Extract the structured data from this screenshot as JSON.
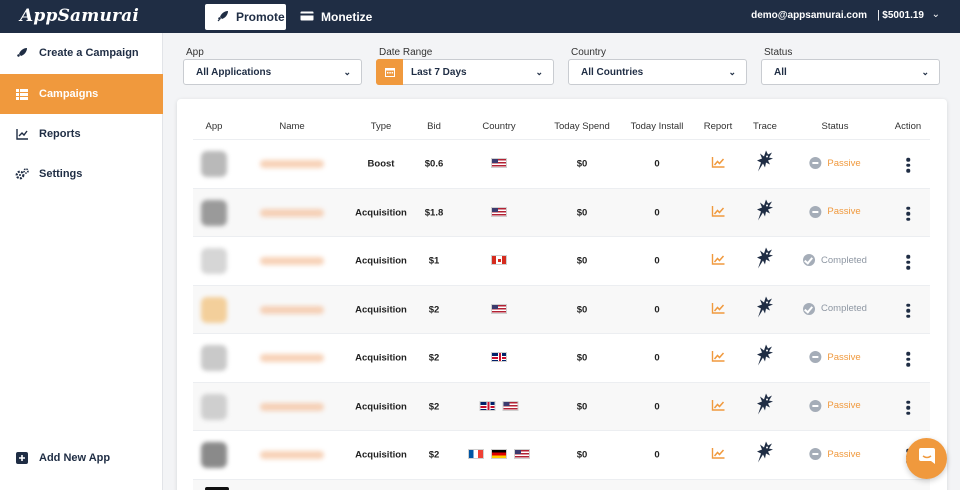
{
  "header": {
    "logo": "AppSamurai",
    "promote_label": "Promote",
    "monetize_label": "Monetize",
    "user_email": "demo@appsamurai.com",
    "separator": "|",
    "balance": "$5001.19"
  },
  "sidebar": {
    "items": [
      {
        "label": "Create a Campaign",
        "icon": "rocket-icon"
      },
      {
        "label": "Campaigns",
        "icon": "list-icon"
      },
      {
        "label": "Reports",
        "icon": "chart-line-icon"
      },
      {
        "label": "Settings",
        "icon": "gears-icon"
      }
    ],
    "add_app_label": "Add New App"
  },
  "filters": {
    "app_label": "App",
    "app_value": "All Applications",
    "date_label": "Date Range",
    "date_value": "Last 7 Days",
    "country_label": "Country",
    "country_value": "All Countries",
    "status_label": "Status",
    "status_value": "All"
  },
  "table": {
    "headers": [
      "App",
      "Name",
      "Type",
      "Bid",
      "Country",
      "Today Spend",
      "Today Install",
      "Report",
      "Trace",
      "Status",
      "Action"
    ],
    "rows": [
      {
        "type": "Boost",
        "bid": "$0.6",
        "countries": [
          "us"
        ],
        "spend": "$0",
        "installs": "0",
        "status": "Passive",
        "status_kind": "passive",
        "thumb": "#b9b9b9"
      },
      {
        "type": "Acquisition",
        "bid": "$1.8",
        "countries": [
          "us"
        ],
        "spend": "$0",
        "installs": "0",
        "status": "Passive",
        "status_kind": "passive",
        "thumb": "#9a9a9a"
      },
      {
        "type": "Acquisition",
        "bid": "$1",
        "countries": [
          "ca"
        ],
        "spend": "$0",
        "installs": "0",
        "status": "Completed",
        "status_kind": "completed",
        "thumb": "#d6d6d6"
      },
      {
        "type": "Acquisition",
        "bid": "$2",
        "countries": [
          "us"
        ],
        "spend": "$0",
        "installs": "0",
        "status": "Completed",
        "status_kind": "completed",
        "thumb": "#f3cf9b"
      },
      {
        "type": "Acquisition",
        "bid": "$2",
        "countries": [
          "gb"
        ],
        "spend": "$0",
        "installs": "0",
        "status": "Passive",
        "status_kind": "passive",
        "thumb": "#c9c9c9"
      },
      {
        "type": "Acquisition",
        "bid": "$2",
        "countries": [
          "gb",
          "us"
        ],
        "spend": "$0",
        "installs": "0",
        "status": "Passive",
        "status_kind": "passive",
        "thumb": "#cfcfcf"
      },
      {
        "type": "Acquisition",
        "bid": "$2",
        "countries": [
          "fr",
          "de",
          "us"
        ],
        "spend": "$0",
        "installs": "0",
        "status": "Passive",
        "status_kind": "passive",
        "thumb": "#8a8a8a"
      }
    ]
  },
  "colors": {
    "accent": "#f0993d",
    "navy": "#1f2d44",
    "status_gray": "#a5adb8"
  }
}
